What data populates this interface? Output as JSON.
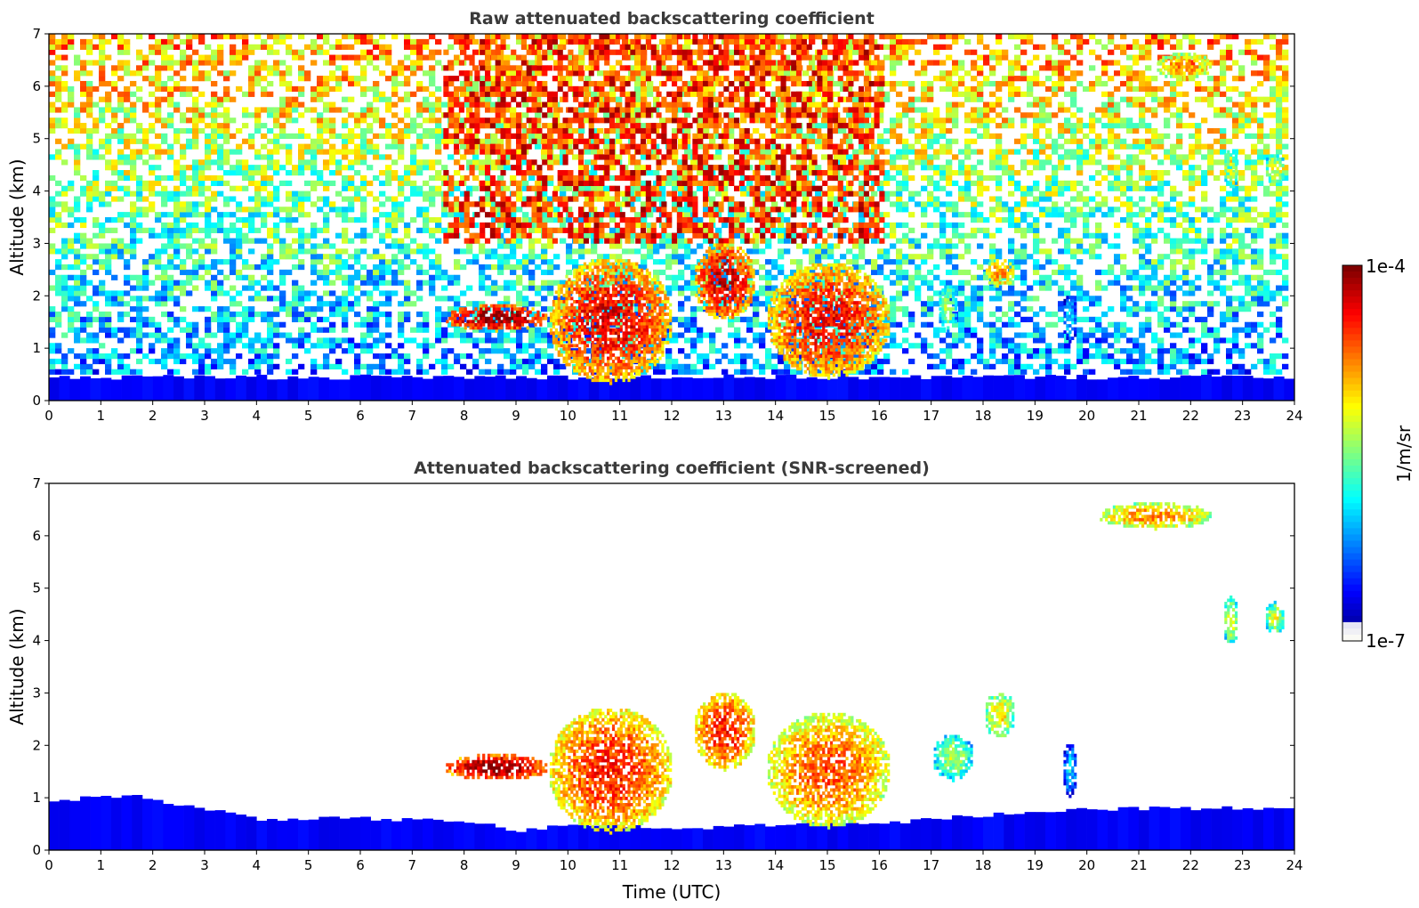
{
  "chart_data": [
    {
      "type": "heatmap",
      "title": "Raw attenuated backscattering coefficient",
      "xlabel": "",
      "ylabel": "Altitude (km)",
      "xlim": [
        0,
        24
      ],
      "ylim": [
        0,
        7
      ],
      "x_ticks": [
        "0",
        "1",
        "2",
        "3",
        "4",
        "5",
        "6",
        "7",
        "8",
        "9",
        "10",
        "11",
        "12",
        "13",
        "14",
        "15",
        "16",
        "17",
        "18",
        "19",
        "20",
        "21",
        "22",
        "23",
        "24"
      ],
      "y_ticks": [
        "0",
        "1",
        "2",
        "3",
        "4",
        "5",
        "6",
        "7"
      ],
      "grid": false,
      "data_end_hour": 23.8,
      "features": [
        {
          "kind": "noise-background"
        },
        {
          "kind": "boundary-layer",
          "top_km": 0.45
        },
        {
          "kind": "cloud",
          "x": [
            7.6,
            9.6
          ],
          "y": [
            1.3,
            1.8
          ],
          "level": 0.98
        },
        {
          "kind": "cloud",
          "x": [
            9.6,
            12.0
          ],
          "y": [
            0.3,
            2.7
          ],
          "level": 0.9
        },
        {
          "kind": "cloud",
          "x": [
            12.4,
            13.6
          ],
          "y": [
            1.5,
            3.0
          ],
          "level": 0.92
        },
        {
          "kind": "cloud",
          "x": [
            13.8,
            16.2
          ],
          "y": [
            0.4,
            2.6
          ],
          "level": 0.88
        },
        {
          "kind": "cloud",
          "x": [
            17.1,
            17.5
          ],
          "y": [
            1.3,
            2.2
          ],
          "level": 0.55
        },
        {
          "kind": "cloud",
          "x": [
            18.0,
            18.6
          ],
          "y": [
            2.1,
            2.7
          ],
          "level": 0.75
        },
        {
          "kind": "cloud",
          "x": [
            19.5,
            19.8
          ],
          "y": [
            1.1,
            2.0
          ],
          "level": 0.35
        },
        {
          "kind": "cloud",
          "x": [
            22.6,
            22.9
          ],
          "y": [
            4.0,
            4.8
          ],
          "level": 0.6
        },
        {
          "kind": "cloud",
          "x": [
            23.4,
            23.8
          ],
          "y": [
            4.1,
            4.7
          ],
          "level": 0.6
        },
        {
          "kind": "cloud",
          "x": [
            21.3,
            22.4
          ],
          "y": [
            6.1,
            6.6
          ],
          "level": 0.75
        },
        {
          "kind": "noise-streaks",
          "x": [
            7.6,
            16.0
          ],
          "y": [
            3.0,
            7.0
          ]
        }
      ]
    },
    {
      "type": "heatmap",
      "title": "Attenuated backscattering coefficient (SNR-screened)",
      "xlabel": "Time (UTC)",
      "ylabel": "Altitude (km)",
      "xlim": [
        0,
        24
      ],
      "ylim": [
        0,
        7
      ],
      "x_ticks": [
        "0",
        "1",
        "2",
        "3",
        "4",
        "5",
        "6",
        "7",
        "8",
        "9",
        "10",
        "11",
        "12",
        "13",
        "14",
        "15",
        "16",
        "17",
        "18",
        "19",
        "20",
        "21",
        "22",
        "23",
        "24"
      ],
      "y_ticks": [
        "0",
        "1",
        "2",
        "3",
        "4",
        "5",
        "6",
        "7"
      ],
      "grid": false,
      "data_end_hour": 23.8,
      "boundary_layer_top_km": [
        {
          "x": 0,
          "y": 0.95
        },
        {
          "x": 1.5,
          "y": 1.05
        },
        {
          "x": 2.5,
          "y": 0.85
        },
        {
          "x": 4,
          "y": 0.6
        },
        {
          "x": 6,
          "y": 0.6
        },
        {
          "x": 8,
          "y": 0.55
        },
        {
          "x": 9,
          "y": 0.35
        },
        {
          "x": 10,
          "y": 0.5
        },
        {
          "x": 12,
          "y": 0.4
        },
        {
          "x": 14,
          "y": 0.5
        },
        {
          "x": 16,
          "y": 0.5
        },
        {
          "x": 17,
          "y": 0.6
        },
        {
          "x": 19,
          "y": 0.75
        },
        {
          "x": 21,
          "y": 0.8
        },
        {
          "x": 23.8,
          "y": 0.8
        }
      ],
      "features": [
        {
          "kind": "cloud",
          "x": [
            7.6,
            9.6
          ],
          "y": [
            1.3,
            1.8
          ],
          "level": 0.98
        },
        {
          "kind": "cloud",
          "x": [
            9.6,
            12.0
          ],
          "y": [
            0.3,
            2.7
          ],
          "level": 0.85
        },
        {
          "kind": "cloud",
          "x": [
            12.4,
            13.6
          ],
          "y": [
            1.5,
            3.0
          ],
          "level": 0.85
        },
        {
          "kind": "cloud",
          "x": [
            13.8,
            16.2
          ],
          "y": [
            0.4,
            2.6
          ],
          "level": 0.8
        },
        {
          "kind": "cloud",
          "x": [
            17.0,
            17.8
          ],
          "y": [
            1.3,
            2.2
          ],
          "level": 0.55
        },
        {
          "kind": "cloud",
          "x": [
            18.0,
            18.6
          ],
          "y": [
            2.1,
            3.0
          ],
          "level": 0.65
        },
        {
          "kind": "cloud",
          "x": [
            19.5,
            19.8
          ],
          "y": [
            1.0,
            2.0
          ],
          "level": 0.35
        },
        {
          "kind": "cloud",
          "x": [
            22.6,
            22.9
          ],
          "y": [
            3.9,
            4.8
          ],
          "level": 0.6
        },
        {
          "kind": "cloud",
          "x": [
            23.4,
            23.8
          ],
          "y": [
            4.1,
            4.7
          ],
          "level": 0.6
        },
        {
          "kind": "cloud",
          "x": [
            20.2,
            22.4
          ],
          "y": [
            6.1,
            6.6
          ],
          "level": 0.75
        }
      ]
    }
  ],
  "colorbar": {
    "max_label": "1e-4",
    "min_label": "1e-7",
    "label": "1/m/sr",
    "colormap": "jet",
    "scale": "log"
  }
}
